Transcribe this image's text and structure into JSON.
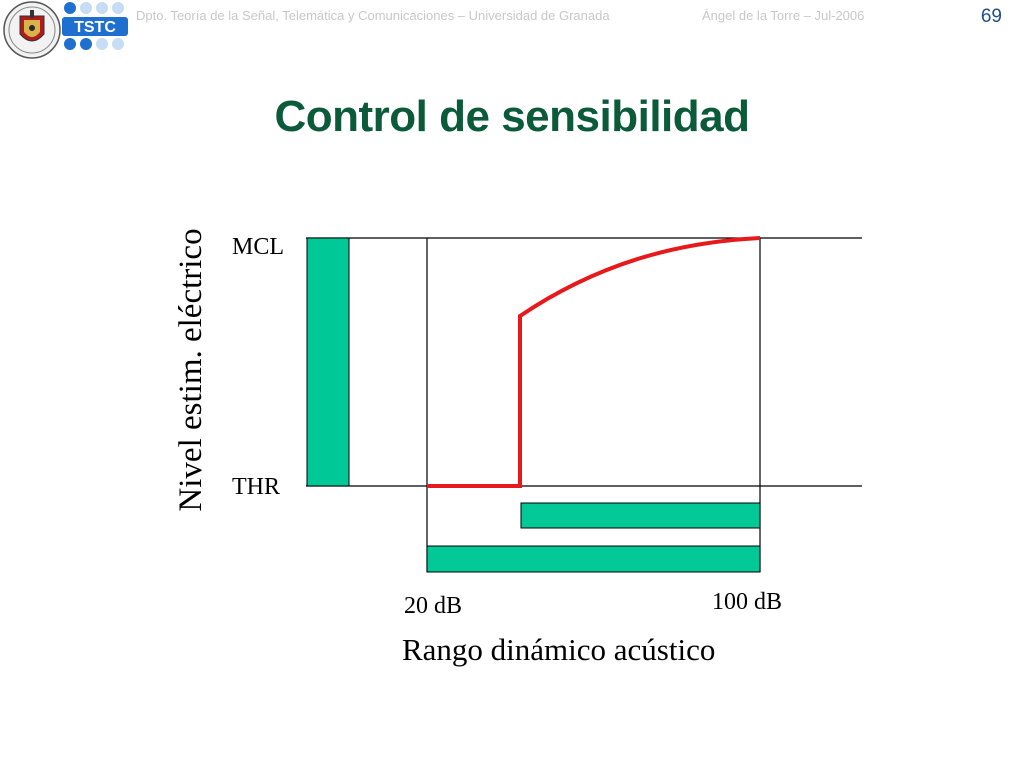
{
  "header": {
    "department": "Dpto. Teoría de la Señal, Telemática y Comunicaciones – Universidad de Granada",
    "author": "Ángel de la Torre – Jul-2006",
    "page_number": "69",
    "tstc_logo_text": "TSTC"
  },
  "slide": {
    "title": "Control de sensibilidad"
  },
  "diagram": {
    "y_axis_label": "Nivel estim. eléctrico",
    "x_axis_label": "Rango dinámico acústico",
    "level_labels": {
      "mcl": "MCL",
      "thr": "THR"
    },
    "x_tick_labels": {
      "low": "20 dB",
      "high": "100 dB"
    },
    "colors": {
      "bar": "#00c896",
      "curve": "#e8191b",
      "line": "#000000",
      "title": "#0b5a3a"
    }
  }
}
